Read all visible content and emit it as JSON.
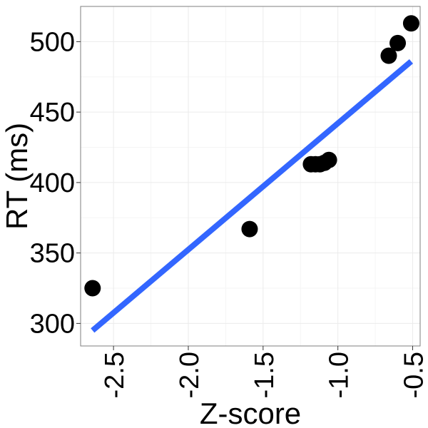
{
  "chart_data": {
    "type": "scatter",
    "title": "",
    "xlabel": "Z-score",
    "ylabel": "RT (ms)",
    "xlim": [
      -2.72,
      -0.45
    ],
    "ylim": [
      284,
      525
    ],
    "x_ticks": [
      -2.5,
      -2.0,
      -1.5,
      -1.0,
      -0.5
    ],
    "x_tick_labels": [
      "-2.5",
      "-2.0",
      "-1.5",
      "-1.0",
      "-0.5"
    ],
    "y_ticks": [
      300,
      350,
      400,
      450,
      500
    ],
    "y_tick_labels": [
      "300",
      "350",
      "400",
      "450",
      "500"
    ],
    "grid": true,
    "points": [
      {
        "x": -2.64,
        "y": 325
      },
      {
        "x": -1.59,
        "y": 367
      },
      {
        "x": -1.18,
        "y": 413
      },
      {
        "x": -1.15,
        "y": 413
      },
      {
        "x": -1.12,
        "y": 413
      },
      {
        "x": -1.09,
        "y": 414
      },
      {
        "x": -1.06,
        "y": 416
      },
      {
        "x": -0.66,
        "y": 490
      },
      {
        "x": -0.6,
        "y": 499
      },
      {
        "x": -0.51,
        "y": 513
      }
    ],
    "fit_line": {
      "x": [
        -2.64,
        -0.51
      ],
      "y": [
        295,
        486
      ]
    },
    "colors": {
      "points": "#000000",
      "fit_line": "#3366ff",
      "panel_border": "#7f7f7f",
      "grid_major": "#ebebeb",
      "grid_minor": "#f5f5f5"
    }
  }
}
